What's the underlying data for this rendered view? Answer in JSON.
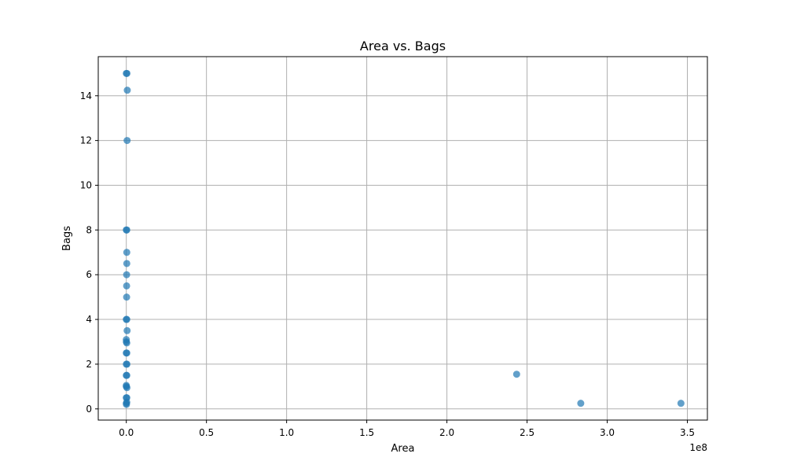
{
  "chart_data": {
    "type": "scatter",
    "title": "Area vs. Bags",
    "xlabel": "Area",
    "ylabel": "Bags",
    "x_offset_label": "1e8",
    "x_scale": 100000000,
    "xlim": [
      -17500000,
      362500000
    ],
    "ylim": [
      -0.5,
      15.75
    ],
    "x_ticks": [
      0,
      50000000,
      100000000,
      150000000,
      200000000,
      250000000,
      300000000,
      350000000
    ],
    "x_tick_labels": [
      "0.0",
      "0.5",
      "1.0",
      "1.5",
      "2.0",
      "2.5",
      "3.0",
      "3.5"
    ],
    "y_ticks": [
      0,
      2,
      4,
      6,
      8,
      10,
      12,
      14
    ],
    "y_tick_labels": [
      "0",
      "2",
      "4",
      "6",
      "8",
      "10",
      "12",
      "14"
    ],
    "grid": true,
    "marker_color": "#1f77b4",
    "marker_alpha": 0.7,
    "points": [
      {
        "x": 0,
        "y": 15
      },
      {
        "x": 400000,
        "y": 15
      },
      {
        "x": 600000,
        "y": 14.25
      },
      {
        "x": 500000,
        "y": 12
      },
      {
        "x": 0,
        "y": 8
      },
      {
        "x": 300000,
        "y": 8
      },
      {
        "x": 300000,
        "y": 7
      },
      {
        "x": 300000,
        "y": 6.5
      },
      {
        "x": 200000,
        "y": 6
      },
      {
        "x": 200000,
        "y": 5.5
      },
      {
        "x": 200000,
        "y": 5
      },
      {
        "x": 0,
        "y": 4
      },
      {
        "x": 300000,
        "y": 4
      },
      {
        "x": 500000,
        "y": 3.5
      },
      {
        "x": 0,
        "y": 3.1
      },
      {
        "x": 0,
        "y": 3
      },
      {
        "x": 300000,
        "y": 2.95
      },
      {
        "x": 0,
        "y": 2.5
      },
      {
        "x": 300000,
        "y": 2.5
      },
      {
        "x": 0,
        "y": 2
      },
      {
        "x": 400000,
        "y": 2
      },
      {
        "x": 0,
        "y": 1.5
      },
      {
        "x": 300000,
        "y": 1.5
      },
      {
        "x": 0,
        "y": 1.05
      },
      {
        "x": 0,
        "y": 1
      },
      {
        "x": 400000,
        "y": 0.95
      },
      {
        "x": 0,
        "y": 0.5
      },
      {
        "x": 300000,
        "y": 0.5
      },
      {
        "x": 0,
        "y": 0.25
      },
      {
        "x": 300000,
        "y": 0.3
      },
      {
        "x": 100000,
        "y": 0.2
      },
      {
        "x": 243500000,
        "y": 1.55
      },
      {
        "x": 283500000,
        "y": 0.25
      },
      {
        "x": 346000000,
        "y": 0.25
      }
    ]
  }
}
